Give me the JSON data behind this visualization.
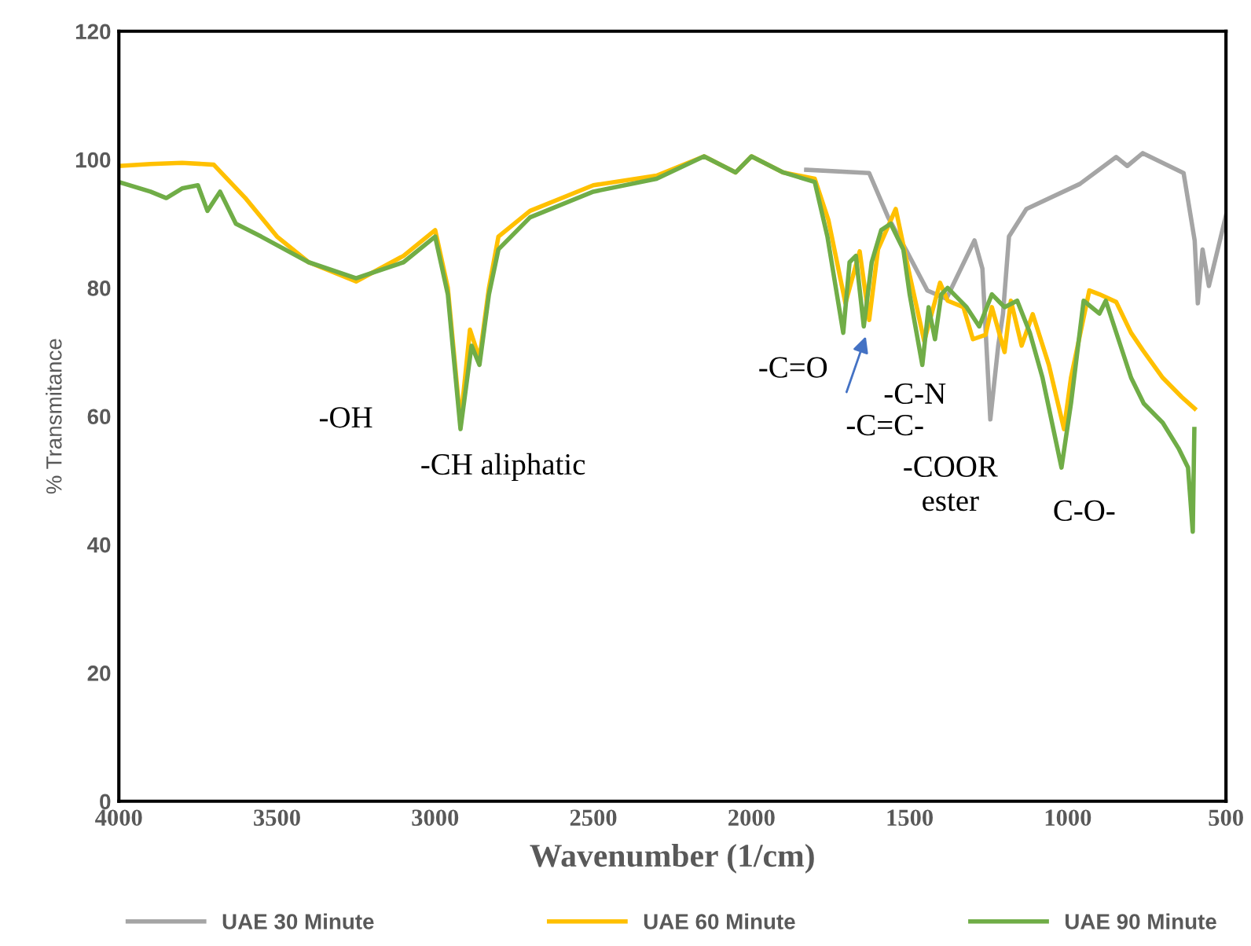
{
  "chart_data": {
    "type": "line",
    "xlabel": "Wavenumber (1/cm)",
    "ylabel": "% Transmitance",
    "xlim": [
      4000,
      500
    ],
    "xticks": [
      4000,
      3500,
      3000,
      2500,
      2000,
      1500,
      1000,
      500
    ],
    "ylim": [
      0,
      120
    ],
    "yticks": [
      0,
      20,
      40,
      60,
      80,
      100,
      120
    ],
    "grid": false,
    "legend": "bottom",
    "marker": "none",
    "line_style": "solid",
    "series": [
      {
        "name": "UAE 30 Minute",
        "color": "#a5a5a5",
        "x": [
          1827,
          1628,
          1568,
          1509,
          1444,
          1384,
          1295,
          1270,
          1245,
          1220,
          1205,
          1186,
          1131,
          962,
          847,
          812,
          763,
          634,
          599,
          589,
          574,
          554,
          524,
          500
        ],
        "values": [
          98.4,
          97.9,
          91,
          85.7,
          79.6,
          78.3,
          87.4,
          83,
          59.5,
          71,
          75.9,
          88,
          92.3,
          96.2,
          100.4,
          99,
          101,
          97.9,
          87.4,
          77.6,
          86,
          80.3,
          86.4,
          91.3
        ]
      },
      {
        "name": "UAE 60 Minute",
        "color": "#ffc000",
        "x": [
          4000,
          3900,
          3800,
          3700,
          3600,
          3500,
          3400,
          3250,
          3100,
          3000,
          2960,
          2920,
          2890,
          2860,
          2830,
          2800,
          2700,
          2500,
          2300,
          2150,
          2050,
          2000,
          1900,
          1800,
          1757,
          1703,
          1658,
          1628,
          1600,
          1544,
          1500,
          1454,
          1404,
          1380,
          1330,
          1300,
          1260,
          1240,
          1200,
          1180,
          1146,
          1111,
          1060,
          1012,
          990,
          932,
          900,
          847,
          800,
          763,
          700,
          640,
          599
        ],
        "values": [
          99,
          99.3,
          99.5,
          99.2,
          94,
          88,
          84,
          81,
          85,
          89,
          80,
          59,
          73.5,
          69,
          80,
          88,
          92,
          96,
          97.5,
          100.5,
          98,
          100.5,
          98,
          97,
          90.6,
          77.6,
          85.7,
          75,
          86,
          92.3,
          82,
          71.7,
          80.8,
          78,
          77,
          72,
          72.7,
          77,
          70,
          78,
          71,
          75.9,
          68,
          58,
          66,
          79.6,
          79,
          77.8,
          73,
          70.3,
          66,
          63,
          61.2
        ]
      },
      {
        "name": "UAE 90 Minute",
        "color": "#70ad47",
        "x": [
          4000,
          3900,
          3850,
          3800,
          3750,
          3720,
          3680,
          3630,
          3550,
          3400,
          3250,
          3100,
          3000,
          2960,
          2920,
          2885,
          2860,
          2830,
          2800,
          2700,
          2500,
          2300,
          2150,
          2050,
          2000,
          1900,
          1800,
          1760,
          1710,
          1690,
          1670,
          1645,
          1620,
          1590,
          1560,
          1520,
          1500,
          1460,
          1440,
          1420,
          1400,
          1380,
          1320,
          1280,
          1240,
          1200,
          1160,
          1120,
          1080,
          1020,
          990,
          950,
          900,
          880,
          840,
          800,
          760,
          700,
          650,
          620,
          605,
          600
        ],
        "values": [
          96.5,
          95,
          94,
          95.5,
          96,
          92,
          95,
          90,
          88,
          84,
          81.5,
          84,
          88,
          79,
          58,
          71,
          68,
          79,
          86,
          91,
          95,
          97,
          100.5,
          98,
          100.5,
          98,
          96.5,
          88,
          73,
          84,
          85,
          74,
          84,
          89,
          90,
          86,
          79,
          68,
          77,
          72,
          79,
          80,
          77,
          74,
          79,
          77,
          78,
          73,
          66,
          52,
          62,
          78,
          76,
          78,
          72,
          66,
          62,
          59,
          55,
          52,
          42,
          58
        ]
      }
    ],
    "annotations": [
      "-OH",
      "-CH aliphatic",
      "-C=O",
      "-C=C-",
      "-C-N",
      "-COOR\nester",
      "C-O-"
    ]
  }
}
